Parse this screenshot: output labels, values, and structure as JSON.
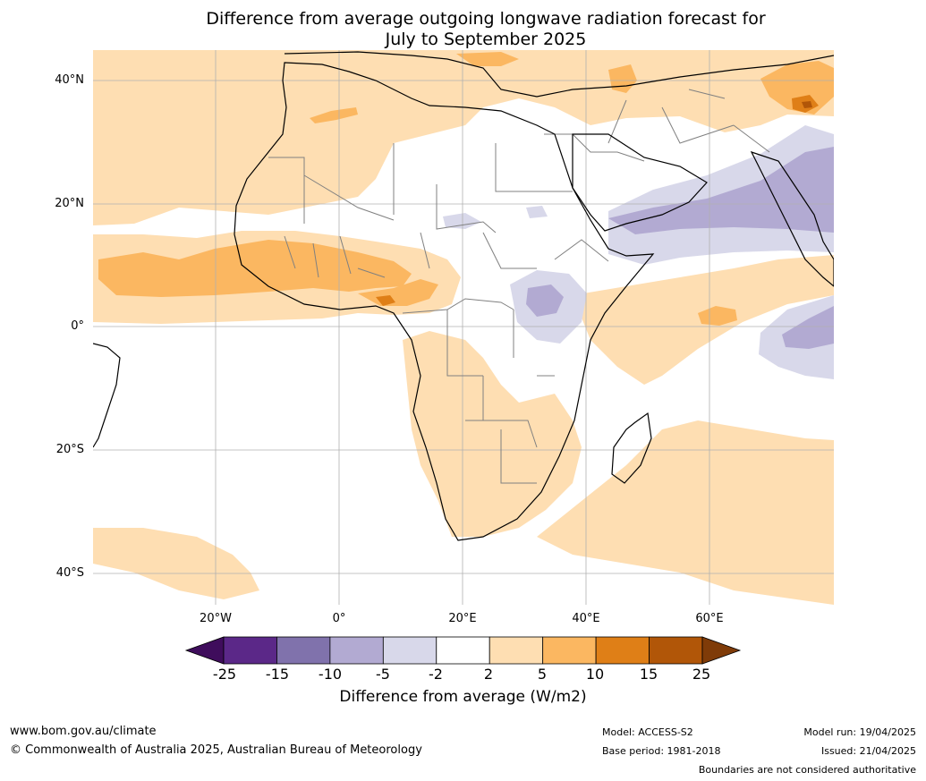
{
  "title": {
    "line1": "Difference from average outgoing longwave radiation forecast for",
    "line2": "July to September 2025"
  },
  "axes": {
    "lat_labels": [
      "40°N",
      "20°N",
      "0°",
      "20°S",
      "40°S"
    ],
    "lon_labels": [
      "20°W",
      "0°",
      "20°E",
      "40°E",
      "60°E"
    ]
  },
  "colorbar": {
    "title": "Difference from average (W/m2)",
    "ticks": [
      "-25",
      "-15",
      "-10",
      "-5",
      "-2",
      "2",
      "5",
      "10",
      "15",
      "25"
    ],
    "colors": [
      "#3f0d5c",
      "#5b2888",
      "#8072ac",
      "#b2aad2",
      "#d8d8ea",
      "#ffffff",
      "#fedeb2",
      "#fbb761",
      "#df7f17",
      "#b15608",
      "#7f3b08"
    ]
  },
  "map_colors": {
    "ocean": "#ffffff",
    "pos_light": "#fedeb2",
    "pos_mid": "#fbb761",
    "pos_strong": "#df7f17",
    "neg_light": "#d8d8ea",
    "neg_mid": "#b2aad2",
    "coast": "#000000",
    "border": "#808080",
    "grid": "#b0b0b0"
  },
  "footer": {
    "website": "www.bom.gov.au/climate",
    "copyright": "© Commonwealth of Australia 2025, Australian Bureau of Meteorology",
    "model": "Model: ACCESS-S2",
    "base_period": "Base period: 1981-2018",
    "model_run": "Model run: 19/04/2025",
    "issued": "Issued: 21/04/2025",
    "disclaimer": "Boundaries are not considered authoritative"
  }
}
